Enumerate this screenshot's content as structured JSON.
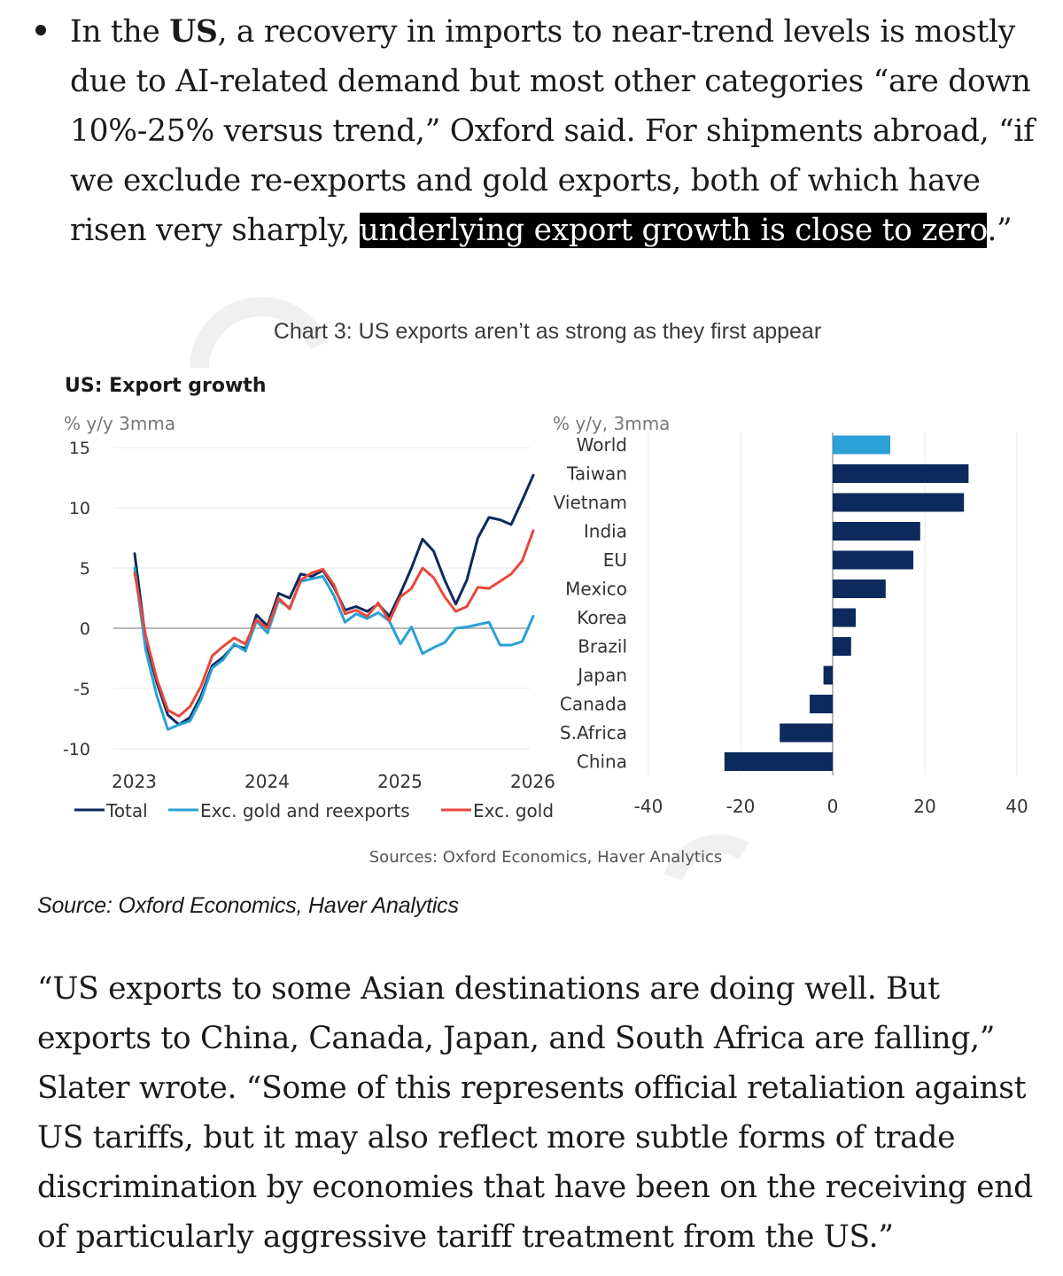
{
  "article": {
    "bullet": {
      "pre": "In the ",
      "bold": "US",
      "mid": ", a recovery in imports to near-trend levels is mostly due to AI-related demand but most other categories “are down 10%-25% versus trend,” Oxford said. For shipments abroad, “if we exclude re-exports and gold exports, both of which have risen very sharply, ",
      "highlight": "underlying export growth is close to zero",
      "post": ".”"
    },
    "caption": "Source: Oxford Economics, Haver Analytics",
    "quote": "“US exports to some Asian destinations are doing well. But exports to China, Canada, Japan, and South Africa are falling,” Slater wrote. “Some of this represents official retaliation against US tariffs, but it may also reflect more subtle forms of trade discrimination by economies that have been on the receiving end of particularly aggressive tariff treatment from the US.”"
  },
  "figure": {
    "title": "Chart 3: US exports aren’t as strong as they first appear",
    "source": "Sources: Oxford Economics, Haver Analytics"
  },
  "chart_data": [
    {
      "type": "line",
      "title": "US: Export growth",
      "ylabel": "% y/y 3mma",
      "ylim": [
        -10,
        15
      ],
      "yticks": [
        15,
        10,
        5,
        0,
        -5,
        -10
      ],
      "xticks": [
        "2023",
        "2024",
        "2025",
        "2026"
      ],
      "grid": true,
      "legend": "bottom",
      "x": [
        "2023-01",
        "2023-02",
        "2023-03",
        "2023-04",
        "2023-05",
        "2023-06",
        "2023-07",
        "2023-08",
        "2023-09",
        "2023-10",
        "2023-11",
        "2023-12",
        "2024-01",
        "2024-02",
        "2024-03",
        "2024-04",
        "2024-05",
        "2024-06",
        "2024-07",
        "2024-08",
        "2024-09",
        "2024-10",
        "2024-11",
        "2024-12",
        "2025-01",
        "2025-02",
        "2025-03",
        "2025-04",
        "2025-05",
        "2025-06",
        "2025-07",
        "2025-08",
        "2025-09",
        "2025-10",
        "2025-11",
        "2025-12",
        "2026-01"
      ],
      "series": [
        {
          "name": "Total",
          "color": "#0c2a5b",
          "values": [
            6.2,
            -1.0,
            -4.5,
            -7.2,
            -8.0,
            -7.4,
            -5.6,
            -3.1,
            -2.4,
            -1.4,
            -1.7,
            1.1,
            0.2,
            2.9,
            2.5,
            4.5,
            4.3,
            4.8,
            3.4,
            1.5,
            1.8,
            1.4,
            2.0,
            1.0,
            2.9,
            5.0,
            7.4,
            6.4,
            4.0,
            2.0,
            4.0,
            7.5,
            9.2,
            9.0,
            8.6,
            10.6,
            12.7
          ]
        },
        {
          "name": "Exc. gold and reexports",
          "color": "#2aa0d6",
          "values": [
            5.0,
            -1.8,
            -5.6,
            -8.4,
            -8.0,
            -7.7,
            -5.9,
            -3.3,
            -2.6,
            -1.3,
            -1.9,
            0.6,
            -0.4,
            2.3,
            1.7,
            3.9,
            4.1,
            4.3,
            2.7,
            0.5,
            1.2,
            0.8,
            1.3,
            0.6,
            -1.3,
            0.1,
            -2.1,
            -1.6,
            -1.2,
            0.0,
            0.1,
            0.3,
            0.5,
            -1.4,
            -1.4,
            -1.1,
            1.0
          ]
        },
        {
          "name": "Exc. gold",
          "color": "#e8483d",
          "values": [
            4.6,
            -0.6,
            -4.2,
            -6.8,
            -7.3,
            -6.5,
            -4.8,
            -2.3,
            -1.5,
            -0.8,
            -1.3,
            0.7,
            0.0,
            2.5,
            1.6,
            4.0,
            4.6,
            4.9,
            3.6,
            1.2,
            1.5,
            1.0,
            2.1,
            0.6,
            2.6,
            3.3,
            5.0,
            4.2,
            2.6,
            1.4,
            1.8,
            3.4,
            3.3,
            3.9,
            4.5,
            5.6,
            8.1
          ]
        }
      ]
    },
    {
      "type": "bar",
      "orientation": "horizontal",
      "ylabel": "% y/y, 3mma",
      "xlim": [
        -40,
        40
      ],
      "xticks": [
        -40,
        -20,
        0,
        20,
        40
      ],
      "grid": true,
      "categories": [
        "World",
        "Taiwan",
        "Vietnam",
        "India",
        "EU",
        "Mexico",
        "Korea",
        "Brazil",
        "Japan",
        "Canada",
        "S.Africa",
        "China"
      ],
      "values": [
        12.5,
        29.5,
        28.5,
        19,
        17.5,
        11.5,
        5,
        4,
        -2,
        -5,
        -11.5,
        -23.5
      ],
      "colors": [
        "#2aa0d6",
        "#0c2a5b",
        "#0c2a5b",
        "#0c2a5b",
        "#0c2a5b",
        "#0c2a5b",
        "#0c2a5b",
        "#0c2a5b",
        "#0c2a5b",
        "#0c2a5b",
        "#0c2a5b",
        "#0c2a5b"
      ]
    }
  ]
}
